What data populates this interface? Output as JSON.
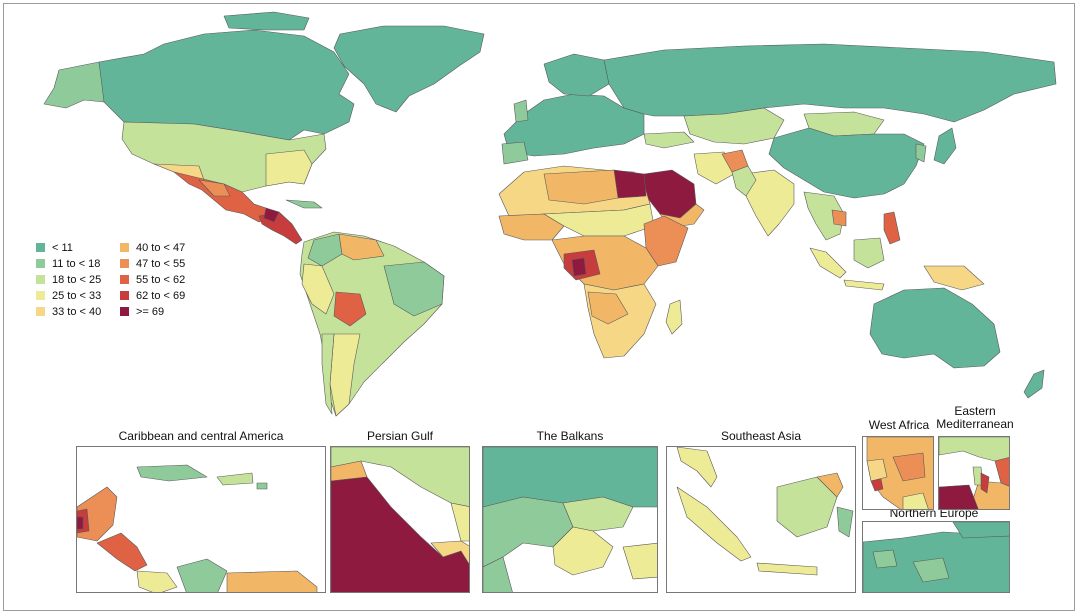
{
  "colors": {
    "c0": "#62b599",
    "c1": "#8fcb9a",
    "c2": "#c5e29a",
    "c3": "#eeeb97",
    "c4": "#f6d786",
    "c5": "#f2b766",
    "c6": "#ec8f56",
    "c7": "#df6244",
    "c8": "#c73c3d",
    "c9": "#8e1a3f",
    "border": "#5a5a5a",
    "frame": "#9a9a9a"
  },
  "legend": {
    "items": [
      {
        "label": "< 11",
        "color": "#62b599"
      },
      {
        "label": "11 to < 18",
        "color": "#8fcb9a"
      },
      {
        "label": "18 to < 25",
        "color": "#c5e29a"
      },
      {
        "label": "25 to < 33",
        "color": "#eeeb97"
      },
      {
        "label": "33 to < 40",
        "color": "#f6d786"
      },
      {
        "label": "40 to < 47",
        "color": "#f2b766"
      },
      {
        "label": "47 to < 55",
        "color": "#ec8f56"
      },
      {
        "label": "55 to < 62",
        "color": "#df6244"
      },
      {
        "label": "62 to < 69",
        "color": "#c73c3d"
      },
      {
        "label": ">= 69",
        "color": "#8e1a3f"
      }
    ]
  },
  "insets": {
    "caribbean": {
      "title": "Caribbean and central America"
    },
    "persian_gulf": {
      "title": "Persian Gulf"
    },
    "balkans": {
      "title": "The Balkans"
    },
    "southeast_asia": {
      "title": "Southeast Asia"
    },
    "west_africa": {
      "title": "West Africa"
    },
    "eastern_med": {
      "title_line1": "Eastern",
      "title_line2": "Mediterranean"
    },
    "northern_europe": {
      "title": "Northern Europe"
    }
  }
}
